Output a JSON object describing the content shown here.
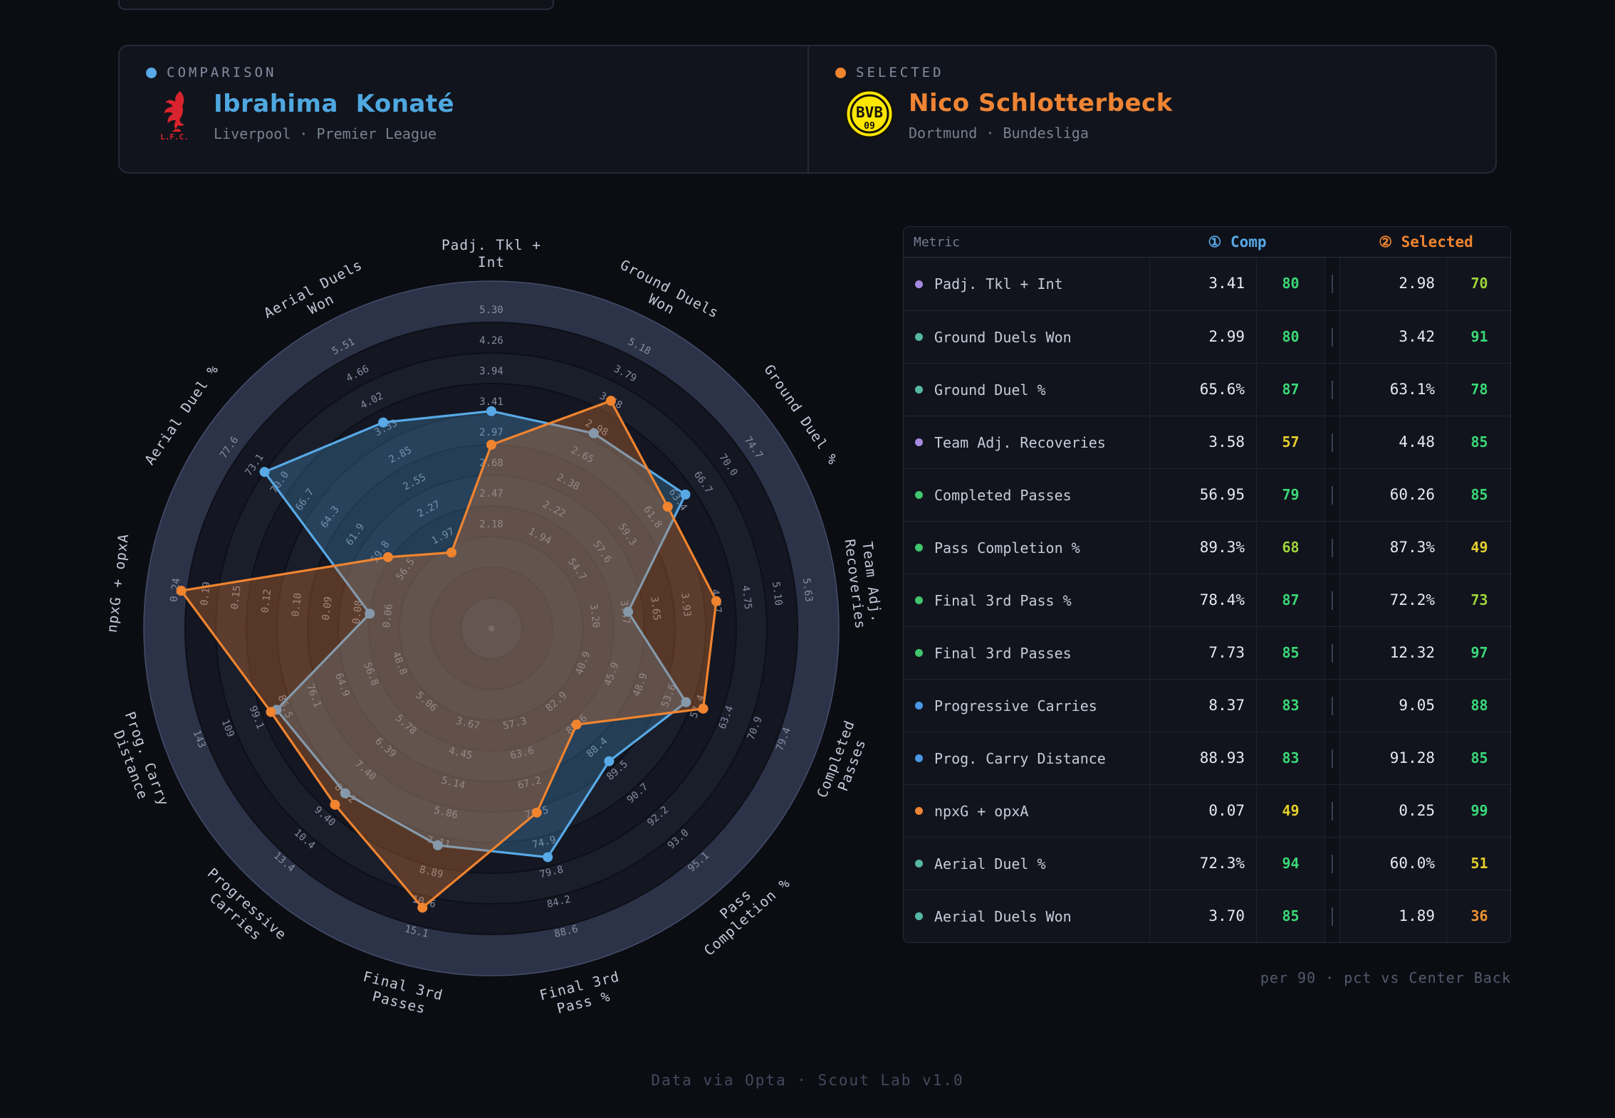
{
  "page": {
    "footer": "Data via Opta · Scout Lab v1.0"
  },
  "players": {
    "comparison": {
      "tag": "COMPARISON",
      "name": "Ibrahima  Konaté",
      "club_line": "Liverpool · Premier League",
      "badge": "L.F.C.",
      "accent": "#58a9e6"
    },
    "selected": {
      "tag": "SELECTED",
      "name": "Nico Schlotterbeck",
      "club_line": "Dortmund · Bundesliga",
      "badge": "BVB 09",
      "accent": "#f0842f"
    }
  },
  "table": {
    "header": {
      "metric": "Metric",
      "comp": "① Comp",
      "selected": "② Selected"
    },
    "footnote": "per 90 · pct vs Center Back",
    "rows": [
      {
        "metric": "Padj. Tkl + Int",
        "category": "purple",
        "comp_value": "3.41",
        "comp_pct": 80,
        "sel_value": "2.98",
        "sel_pct": 70
      },
      {
        "metric": "Ground Duels Won",
        "category": "teal",
        "comp_value": "2.99",
        "comp_pct": 80,
        "sel_value": "3.42",
        "sel_pct": 91
      },
      {
        "metric": "Ground Duel %",
        "category": "teal",
        "comp_value": "65.6%",
        "comp_pct": 87,
        "sel_value": "63.1%",
        "sel_pct": 78
      },
      {
        "metric": "Team Adj. Recoveries",
        "category": "purple",
        "comp_value": "3.58",
        "comp_pct": 57,
        "sel_value": "4.48",
        "sel_pct": 85
      },
      {
        "metric": "Completed Passes",
        "category": "green",
        "comp_value": "56.95",
        "comp_pct": 79,
        "sel_value": "60.26",
        "sel_pct": 85
      },
      {
        "metric": "Pass Completion %",
        "category": "green",
        "comp_value": "89.3%",
        "comp_pct": 68,
        "sel_value": "87.3%",
        "sel_pct": 49
      },
      {
        "metric": "Final 3rd Pass %",
        "category": "green",
        "comp_value": "78.4%",
        "comp_pct": 87,
        "sel_value": "72.2%",
        "sel_pct": 73
      },
      {
        "metric": "Final 3rd Passes",
        "category": "green",
        "comp_value": "7.73",
        "comp_pct": 85,
        "sel_value": "12.32",
        "sel_pct": 97
      },
      {
        "metric": "Progressive Carries",
        "category": "blue",
        "comp_value": "8.37",
        "comp_pct": 83,
        "sel_value": "9.05",
        "sel_pct": 88
      },
      {
        "metric": "Prog. Carry Distance",
        "category": "blue",
        "comp_value": "88.93",
        "comp_pct": 83,
        "sel_value": "91.28",
        "sel_pct": 85
      },
      {
        "metric": "npxG + opxA",
        "category": "orange",
        "comp_value": "0.07",
        "comp_pct": 49,
        "sel_value": "0.25",
        "sel_pct": 99
      },
      {
        "metric": "Aerial Duel %",
        "category": "teal",
        "comp_value": "72.3%",
        "comp_pct": 94,
        "sel_value": "60.0%",
        "sel_pct": 51
      },
      {
        "metric": "Aerial Duels Won",
        "category": "teal",
        "comp_value": "3.70",
        "comp_pct": 85,
        "sel_value": "1.89",
        "sel_pct": 36
      }
    ]
  },
  "chart_data": {
    "type": "radar",
    "rings": 10,
    "tick_order": "outer_to_inner (rings 10..3), per-axis metric scale",
    "series": [
      {
        "name": "Ibrahima Konaté",
        "role": "comparison",
        "color": "#58a9e6",
        "fill": "#4a97cc",
        "fill_opacity": 0.3
      },
      {
        "name": "Nico Schlotterbeck",
        "role": "selected",
        "color": "#f0842f",
        "fill": "#e27a33",
        "fill_opacity": 0.33
      }
    ],
    "axes": [
      {
        "label": "Padj. Tkl + Int",
        "lines": [
          "Padj. Tkl +",
          "Int"
        ],
        "ticks": [
          "5.30",
          "4.26",
          "3.94",
          "3.41",
          "2.97",
          "2.68",
          "2.47",
          "2.18"
        ],
        "comp": {
          "value": "3.41",
          "pct": 80,
          "r": 0.71
        },
        "selected": {
          "value": "2.98",
          "pct": 70,
          "r": 0.6
        }
      },
      {
        "label": "Ground Duels Won",
        "lines": [
          "Ground Duels",
          "Won"
        ],
        "ticks": [
          "5.18",
          "3.79",
          "3.58",
          "2.98",
          "2.65",
          "2.38",
          "2.22",
          "1.94"
        ],
        "comp": {
          "value": "2.99",
          "pct": 80,
          "r": 0.72
        },
        "selected": {
          "value": "3.42",
          "pct": 91,
          "r": 0.84
        }
      },
      {
        "label": "Ground Duel %",
        "lines": [
          "Ground Duel %"
        ],
        "ticks": [
          "74.7",
          "70.0",
          "66.7",
          "63.4",
          "61.8",
          "59.3",
          "57.6",
          "54.7"
        ],
        "comp": {
          "value": "65.6%",
          "pct": 87,
          "r": 0.77
        },
        "selected": {
          "value": "63.1%",
          "pct": 78,
          "r": 0.7
        }
      },
      {
        "label": "Team Adj. Recoveries",
        "lines": [
          "Team Adj.",
          "Recoveries"
        ],
        "ticks": [
          "5.63",
          "5.10",
          "4.75",
          "4.27",
          "3.93",
          "3.65",
          "3.47",
          "3.20"
        ],
        "comp": {
          "value": "3.58",
          "pct": 57,
          "r": 0.45
        },
        "selected": {
          "value": "4.48",
          "pct": 85,
          "r": 0.74
        }
      },
      {
        "label": "Completed Passes",
        "lines": [
          "Completed",
          "Passes"
        ],
        "ticks": [
          "79.4",
          "70.9",
          "63.4",
          "57.4",
          "53.6",
          "48.9",
          "45.9",
          "40.9"
        ],
        "comp": {
          "value": "56.95",
          "pct": 79,
          "r": 0.68
        },
        "selected": {
          "value": "60.26",
          "pct": 85,
          "r": 0.74
        }
      },
      {
        "label": "Pass Completion %",
        "lines": [
          "Pass",
          "Completion %"
        ],
        "ticks": [
          "95.1",
          "93.0",
          "92.2",
          "90.7",
          "89.5",
          "88.4",
          "85.6",
          "82.9"
        ],
        "comp": {
          "value": "89.3%",
          "pct": 68,
          "r": 0.58
        },
        "selected": {
          "value": "87.3%",
          "pct": 49,
          "r": 0.42
        }
      },
      {
        "label": "Final 3rd Pass %",
        "lines": [
          "Final 3rd",
          "Pass %"
        ],
        "ticks": [
          "88.6",
          "84.2",
          "79.8",
          "74.9",
          "71.5",
          "67.2",
          "63.6",
          "57.3"
        ],
        "comp": {
          "value": "78.4%",
          "pct": 87,
          "r": 0.77
        },
        "selected": {
          "value": "72.2%",
          "pct": 73,
          "r": 0.62
        }
      },
      {
        "label": "Final 3rd Passes",
        "lines": [
          "Final 3rd",
          "Passes"
        ],
        "ticks": [
          "15.1",
          "10.6",
          "8.89",
          "7.11",
          "5.86",
          "5.14",
          "4.45",
          "3.67"
        ],
        "comp": {
          "value": "7.73",
          "pct": 85,
          "r": 0.73
        },
        "selected": {
          "value": "12.32",
          "pct": 97,
          "r": 0.94
        }
      },
      {
        "label": "Progressive Carries",
        "lines": [
          "Progressive",
          "Carries"
        ],
        "ticks": [
          "13.4",
          "10.4",
          "9.40",
          "8.12",
          "7.40",
          "6.39",
          "5.78",
          "5.06"
        ],
        "comp": {
          "value": "8.37",
          "pct": 83,
          "r": 0.72
        },
        "selected": {
          "value": "9.05",
          "pct": 88,
          "r": 0.77
        }
      },
      {
        "label": "Prog. Carry Distance",
        "lines": [
          "Prog. Carry",
          "Distance"
        ],
        "ticks": [
          "143",
          "109",
          "99.1",
          "86.5",
          "76.1",
          "64.9",
          "56.8",
          "48.8"
        ],
        "comp": {
          "value": "88.93",
          "pct": 83,
          "r": 0.75
        },
        "selected": {
          "value": "91.28",
          "pct": 85,
          "r": 0.77
        }
      },
      {
        "label": "npxG + opxA",
        "lines": [
          "npxG + opxA"
        ],
        "ticks": [
          "0.24",
          "0.19",
          "0.15",
          "0.12",
          "0.10",
          "0.09",
          "0.08",
          "0.06"
        ],
        "comp": {
          "value": "0.07",
          "pct": 49,
          "r": 0.4
        },
        "selected": {
          "value": "0.25",
          "pct": 99,
          "r": 1.02
        }
      },
      {
        "label": "Aerial Duel %",
        "lines": [
          "Aerial Duel %"
        ],
        "ticks": [
          "77.6",
          "73.1",
          "70.0",
          "66.7",
          "64.3",
          "61.9",
          "59.8",
          "56.5"
        ],
        "comp": {
          "value": "72.3%",
          "pct": 94,
          "r": 0.9
        },
        "selected": {
          "value": "60.0%",
          "pct": 51,
          "r": 0.41
        }
      },
      {
        "label": "Aerial Duels Won",
        "lines": [
          "Aerial Duels",
          "Won"
        ],
        "ticks": [
          "5.51",
          "4.66",
          "4.02",
          "3.33",
          "2.85",
          "2.55",
          "2.27",
          "1.97"
        ],
        "comp": {
          "value": "3.70",
          "pct": 85,
          "r": 0.76
        },
        "selected": {
          "value": "1.89",
          "pct": 36,
          "r": 0.28
        }
      }
    ]
  },
  "colors": {
    "comp_accent": "#58a9e6",
    "selected_accent": "#f0842f",
    "pct_green": "#3bd878",
    "pct_lime": "#9fd53c",
    "pct_yellow": "#e5ce2e",
    "pct_orange": "#ef9430",
    "category_dots": {
      "purple": "#a78ae0",
      "teal": "#55b8a4",
      "green": "#41c56d",
      "blue": "#4a97e4",
      "orange": "#ef8434"
    }
  }
}
